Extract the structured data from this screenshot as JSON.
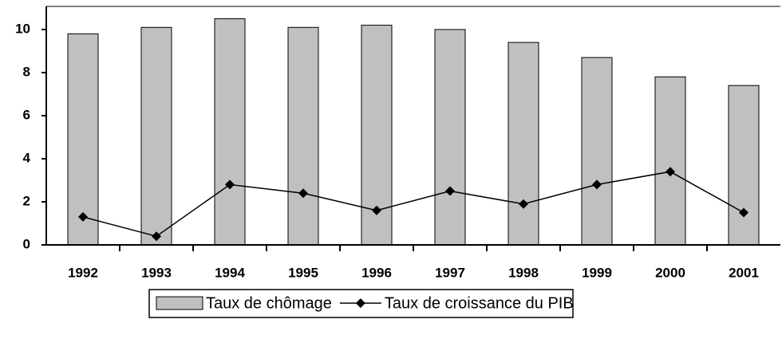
{
  "chart_data": {
    "type": "bar",
    "categories": [
      "1992",
      "1993",
      "1994",
      "1995",
      "1996",
      "1997",
      "1998",
      "1999",
      "2000",
      "2001"
    ],
    "series": [
      {
        "name": "Taux de chômage",
        "type": "bar",
        "color": "#c0c0c0",
        "values": [
          9.8,
          10.1,
          10.5,
          10.1,
          10.2,
          10.0,
          9.4,
          8.7,
          7.8,
          7.4
        ]
      },
      {
        "name": "Taux de croissance du PIB",
        "type": "line",
        "color": "#000000",
        "values": [
          1.3,
          0.4,
          2.8,
          2.4,
          1.6,
          2.5,
          1.9,
          2.8,
          3.4,
          1.5
        ]
      }
    ],
    "ylim": [
      0,
      11
    ],
    "yticks": [
      0,
      2,
      4,
      6,
      8,
      10
    ],
    "legend": "bottom"
  }
}
